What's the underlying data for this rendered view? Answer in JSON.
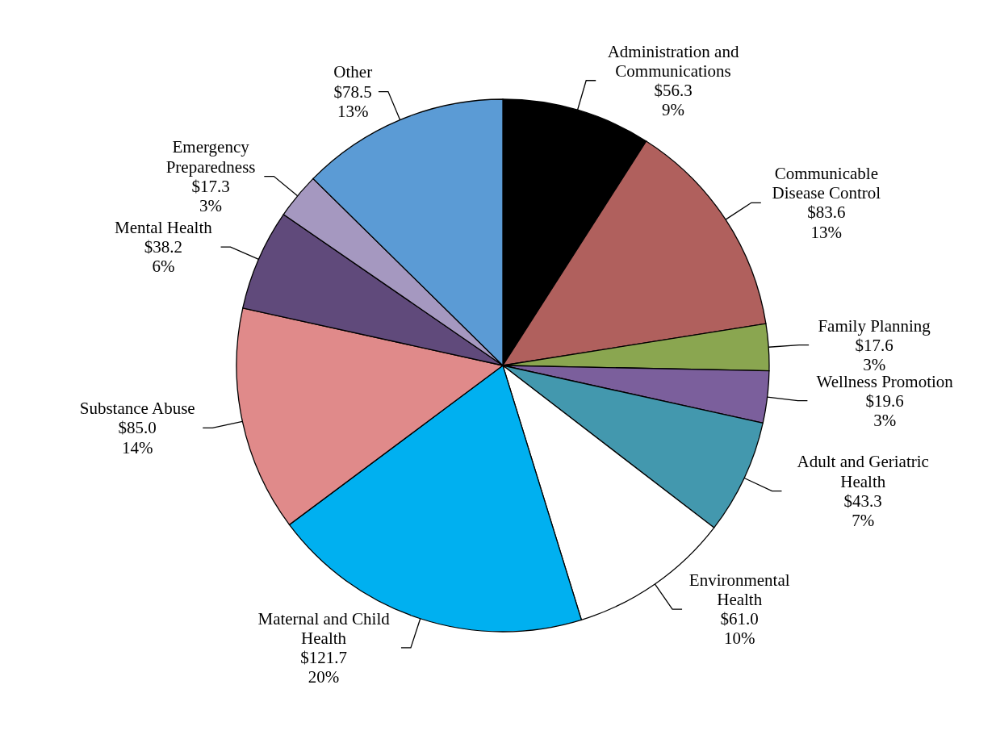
{
  "chart_data": {
    "type": "pie",
    "categories": [
      "Administration and Communications",
      "Communicable Disease Control",
      "Family Planning",
      "Wellness Promotion",
      "Adult and Geriatric Health",
      "Environmental Health",
      "Maternal and Child Health",
      "Substance Abuse",
      "Mental Health",
      "Emergency Preparedness",
      "Other"
    ],
    "values": [
      56.3,
      83.6,
      17.6,
      19.6,
      43.3,
      61.0,
      121.7,
      85.0,
      38.2,
      17.3,
      78.5
    ],
    "colors": [
      "#000000",
      "#b0605d",
      "#8aa650",
      "#7b5f9c",
      "#4398ae",
      "#ffffff",
      "#00b0f0",
      "#e08a8a",
      "#604a7b",
      "#a598c0",
      "#5b9bd5"
    ],
    "value_labels": [
      "$56.3\n9%",
      "$83.6\n13%",
      "$17.6\n3%",
      "$19.6\n3%",
      "$43.3\n7%",
      "$61.0\n10%",
      "$121.7\n20%",
      "$85.0\n14%",
      "$38.2\n6%",
      "$17.3\n3%",
      "$78.5\n13%"
    ]
  }
}
